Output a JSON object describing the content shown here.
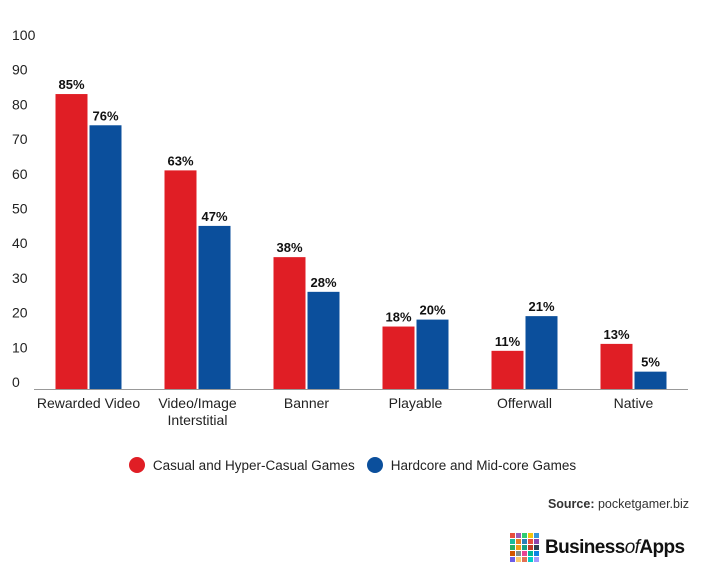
{
  "chart_data": {
    "type": "bar",
    "categories": [
      "Rewarded Video",
      "Video/Image Interstitial",
      "Banner",
      "Playable",
      "Offerwall",
      "Native"
    ],
    "category_lines": [
      [
        "Rewarded Video"
      ],
      [
        "Video/Image",
        "Interstitial"
      ],
      [
        "Banner"
      ],
      [
        "Playable"
      ],
      [
        "Offerwall"
      ],
      [
        "Native"
      ]
    ],
    "series": [
      {
        "name": "Casual and Hyper-Casual Games",
        "color": "#e01e25",
        "values": [
          85,
          63,
          38,
          18,
          11,
          13
        ],
        "labels": [
          "85%",
          "63%",
          "38%",
          "18%",
          "11%",
          "13%"
        ]
      },
      {
        "name": "Hardcore and Mid-core Games",
        "color": "#0b4f9c",
        "values": [
          76,
          47,
          28,
          20,
          21,
          5
        ],
        "labels": [
          "76%",
          "47%",
          "28%",
          "20%",
          "21%",
          "5%"
        ]
      }
    ],
    "yticks": [
      0,
      10,
      20,
      30,
      40,
      50,
      60,
      70,
      80,
      90,
      100
    ],
    "ylim": [
      0,
      100
    ],
    "grid": false,
    "legend_position": "bottom-center"
  },
  "source": {
    "label": "Source:",
    "value": "pocketgamer.biz"
  },
  "logo": {
    "name_prefix": "Business",
    "name_middle": "of",
    "name_suffix": "Apps",
    "grid_colors": [
      "#e84d3d",
      "#9b59b6",
      "#2ecc71",
      "#f1c40f",
      "#3498db",
      "#1abc9c",
      "#e67e22",
      "#2980b9",
      "#e74c3c",
      "#8e44ad",
      "#27ae60",
      "#f39c12",
      "#16a085",
      "#c0392b",
      "#2c3e50",
      "#d35400",
      "#7f8c8d",
      "#e84393",
      "#00b894",
      "#0984e3",
      "#6c5ce7",
      "#fdcb6e",
      "#e17055",
      "#00cec9",
      "#a29bfe"
    ]
  }
}
